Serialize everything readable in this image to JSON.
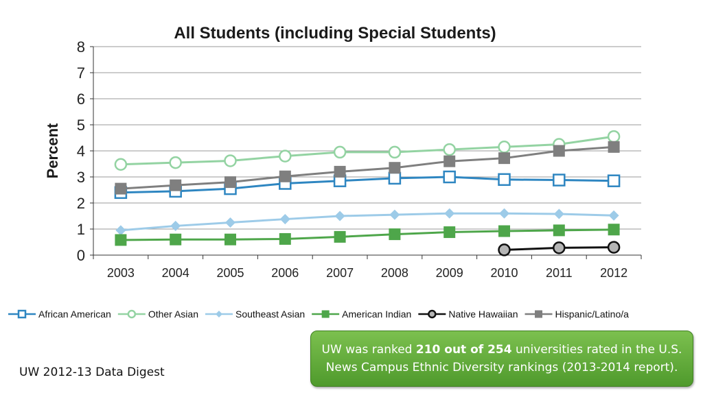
{
  "chart_data": {
    "type": "line",
    "title": "All Students (including Special Students)",
    "ylabel": "Percent",
    "xlabel": "",
    "categories": [
      "2003",
      "2004",
      "2005",
      "2006",
      "2007",
      "2008",
      "2009",
      "2010",
      "2011",
      "2012"
    ],
    "ylim": [
      0,
      8
    ],
    "yticks": [
      "0",
      "1",
      "2",
      "3",
      "4",
      "5",
      "6",
      "7",
      "8"
    ],
    "grid": true,
    "legend_position": "bottom",
    "series": [
      {
        "name": "African American",
        "color": "#2e86c1",
        "marker": "square-open",
        "values": [
          2.4,
          2.45,
          2.55,
          2.75,
          2.85,
          2.95,
          3.0,
          2.9,
          2.88,
          2.85
        ]
      },
      {
        "name": "Other Asian",
        "color": "#93d3a2",
        "marker": "circle-open",
        "values": [
          3.48,
          3.55,
          3.62,
          3.8,
          3.95,
          3.95,
          4.05,
          4.15,
          4.25,
          4.55
        ]
      },
      {
        "name": "Southeast Asian",
        "color": "#9dcbe8",
        "marker": "diamond",
        "values": [
          0.95,
          1.12,
          1.25,
          1.38,
          1.5,
          1.55,
          1.6,
          1.6,
          1.58,
          1.52
        ]
      },
      {
        "name": "American Indian",
        "color": "#4ea64a",
        "marker": "square",
        "values": [
          0.58,
          0.6,
          0.6,
          0.62,
          0.7,
          0.8,
          0.88,
          0.92,
          0.95,
          0.98
        ]
      },
      {
        "name": "Native Hawaiian",
        "color": "#111111",
        "marker": "circle-gray",
        "values": [
          null,
          null,
          null,
          null,
          null,
          null,
          null,
          0.2,
          0.28,
          0.3
        ]
      },
      {
        "name": "Hispanic/Latino/a",
        "color": "#7f7f7f",
        "marker": "square",
        "values": [
          2.55,
          2.68,
          2.8,
          3.02,
          3.2,
          3.35,
          3.6,
          3.72,
          4.0,
          4.15
        ]
      }
    ]
  },
  "footer": {
    "source": "UW 2012-13 Data Digest",
    "callout_before": "UW was ranked ",
    "callout_bold": "210 out of 254",
    "callout_after": " universities rated in the U.S. News Campus Ethnic Diversity rankings (2013-2014 report)."
  }
}
